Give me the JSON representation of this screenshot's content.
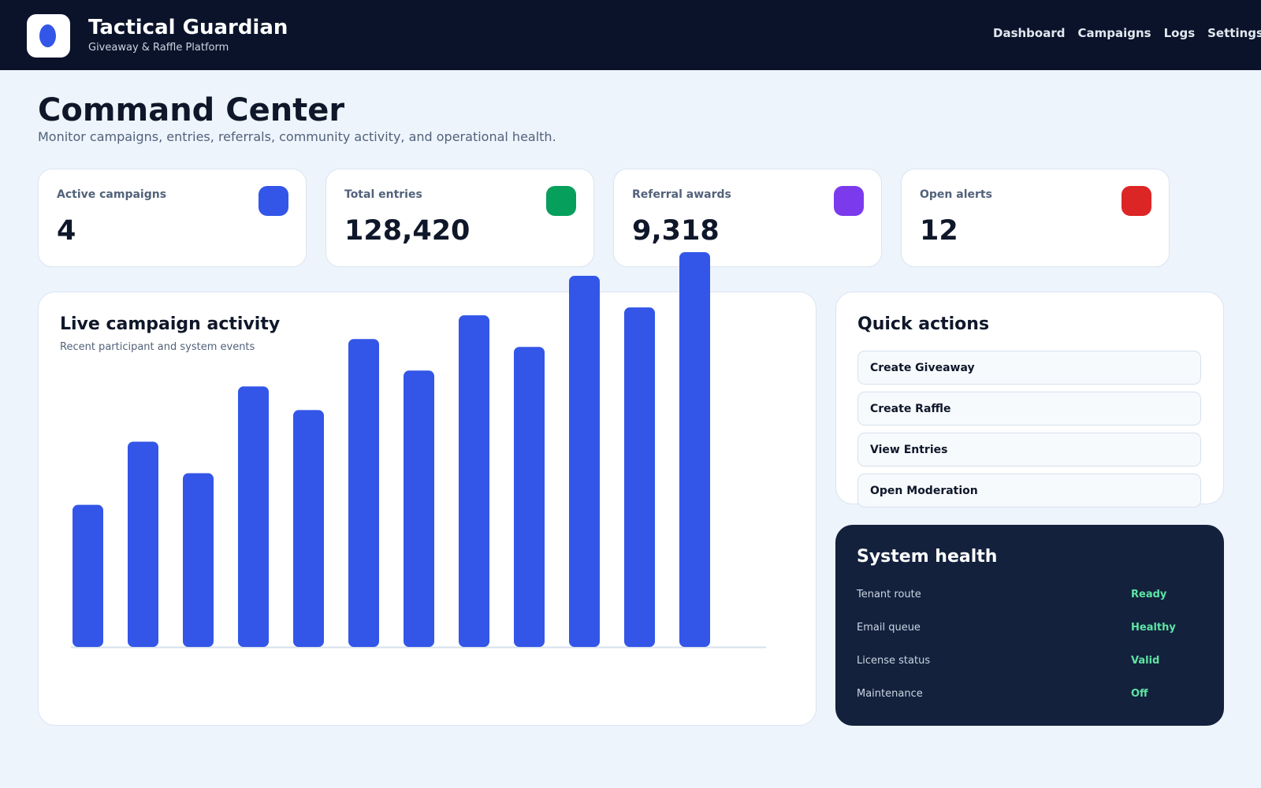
{
  "header": {
    "title": "Tactical Guardian",
    "subtitle": "Giveaway & Raffle Platform",
    "nav": [
      "Dashboard",
      "Campaigns",
      "Logs",
      "Settings"
    ]
  },
  "page": {
    "title": "Command Center",
    "subtitle": "Monitor campaigns, entries, referrals, community activity, and operational health."
  },
  "stats": [
    {
      "label": "Active campaigns",
      "value": "4",
      "color": "#3356e8"
    },
    {
      "label": "Total entries",
      "value": "128,420",
      "color": "#06a05c"
    },
    {
      "label": "Referral awards",
      "value": "9,318",
      "color": "#7c3aed"
    },
    {
      "label": "Open alerts",
      "value": "12",
      "color": "#dc2626"
    }
  ],
  "activity": {
    "title": "Live campaign activity",
    "subtitle": "Recent participant and system events"
  },
  "chart_data": {
    "type": "bar",
    "values": [
      18,
      26,
      22,
      33,
      30,
      39,
      35,
      42,
      38,
      47,
      43,
      50
    ],
    "ylim": [
      0,
      50
    ],
    "bar_color": "#3356e8",
    "grid": false
  },
  "quick_actions": {
    "title": "Quick actions",
    "items": [
      "Create Giveaway",
      "Create Raffle",
      "View Entries",
      "Open Moderation"
    ]
  },
  "system_health": {
    "title": "System health",
    "rows": [
      {
        "label": "Tenant route",
        "value": "Ready"
      },
      {
        "label": "Email queue",
        "value": "Healthy"
      },
      {
        "label": "License status",
        "value": "Valid"
      },
      {
        "label": "Maintenance",
        "value": "Off"
      }
    ]
  }
}
